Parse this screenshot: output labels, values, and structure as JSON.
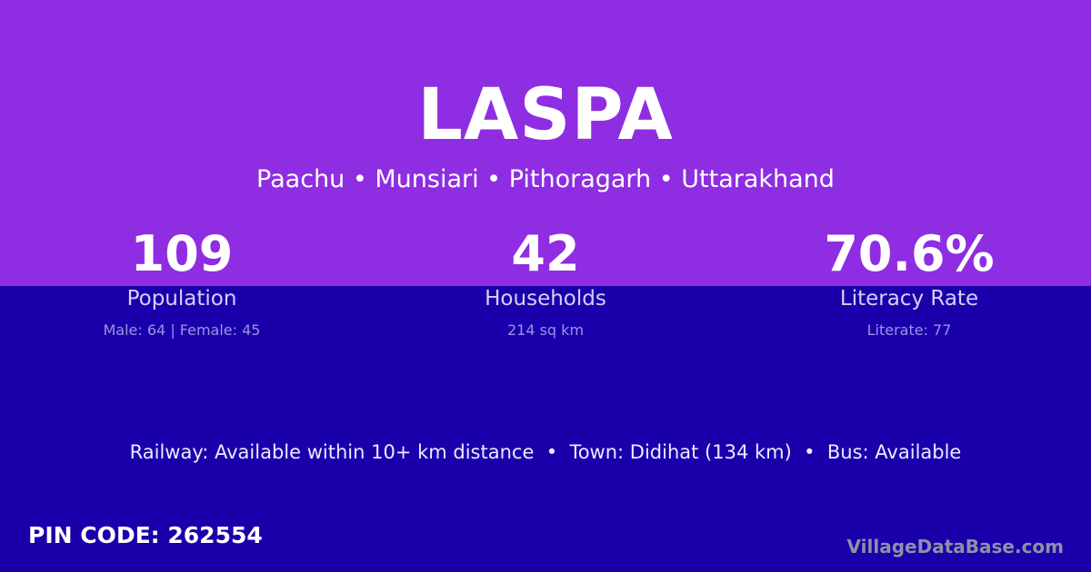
{
  "title": "LASPA",
  "subtitle": "Paachu • Munsiari • Pithoragarh • Uttarakhand",
  "stats": [
    {
      "value": "109",
      "label": "Population",
      "detail": "Male: 64 | Female: 45"
    },
    {
      "value": "42",
      "label": "Households",
      "detail": "214 sq km"
    },
    {
      "value": "70.6%",
      "label": "Literacy Rate",
      "detail": "Literate: 77"
    }
  ],
  "info": "Railway: Available within 10+ km distance  •  Town: Didihat (134 km)  •  Bus: Available",
  "pin": "PIN CODE: 262554",
  "brand": "VillageDataBase.com",
  "colors": {
    "top": "#8e2de2",
    "bottom": "#1a00ab"
  }
}
